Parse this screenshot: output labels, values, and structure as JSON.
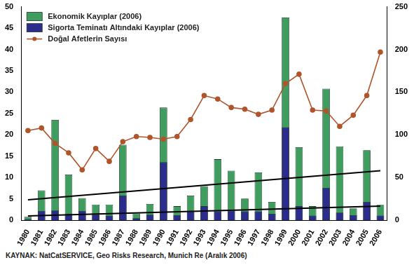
{
  "chart_data": {
    "type": "bar",
    "categories": [
      "1980",
      "1981",
      "1982",
      "1983",
      "1984",
      "1985",
      "1986",
      "1987",
      "1988",
      "1989",
      "1990",
      "1991",
      "1992",
      "1993",
      "1994",
      "1995",
      "1996",
      "1997",
      "1998",
      "1999",
      "2000",
      "2001",
      "2002",
      "2003",
      "2004",
      "2005",
      "2006"
    ],
    "series": [
      {
        "name": "Ekonomik Kayıplar (2006)",
        "type": "bar",
        "color": "#3f9d5f",
        "values": [
          0.8,
          7,
          23.5,
          10.7,
          5.2,
          3.7,
          3.7,
          17.7,
          1.6,
          3.8,
          26.4,
          3.3,
          5.8,
          8,
          14.3,
          11.6,
          5.1,
          11.2,
          4.3,
          47.5,
          17.1,
          3.3,
          30.8,
          17.3,
          2.8,
          16.4,
          3.6
        ]
      },
      {
        "name": "Sigorta Teminatı Altındaki Kayıplar (2006)",
        "type": "bar",
        "color": "#2c2c8e",
        "values": [
          0.3,
          2.2,
          2.3,
          1.5,
          2.2,
          1.3,
          1.1,
          5.8,
          0.5,
          1.3,
          13.6,
          1.2,
          2.1,
          3.3,
          2.1,
          2.2,
          2.1,
          2.1,
          1.5,
          21.8,
          3.3,
          1.1,
          7.6,
          1.8,
          1.2,
          4.3,
          1.1
        ]
      },
      {
        "name": "Doğal Afetlerin Sayısı",
        "type": "line",
        "axis": "y2",
        "color": "#b0552b",
        "marker": "circle",
        "values": [
          105,
          108,
          90,
          79,
          59,
          84,
          69,
          92,
          98,
          97,
          95,
          98,
          118,
          146,
          142,
          132,
          130,
          124,
          129,
          160,
          171,
          129,
          128,
          110,
          123,
          146,
          197
        ]
      },
      {
        "type": "line",
        "color": "#000000",
        "line_style": "solid",
        "values": [
          4.8,
          null,
          null,
          null,
          null,
          null,
          null,
          null,
          null,
          null,
          null,
          null,
          null,
          null,
          null,
          null,
          null,
          null,
          null,
          null,
          null,
          null,
          null,
          null,
          null,
          null,
          11.6
        ]
      },
      {
        "type": "line",
        "color": "#000000",
        "line_style": "solid",
        "values": [
          1.0,
          null,
          null,
          null,
          null,
          null,
          null,
          null,
          null,
          null,
          null,
          null,
          null,
          null,
          null,
          null,
          null,
          null,
          null,
          null,
          null,
          null,
          null,
          null,
          null,
          null,
          3.3
        ]
      }
    ],
    "ylim": [
      0,
      50
    ],
    "yticks": [
      0,
      5,
      10,
      15,
      20,
      25,
      30,
      35,
      40,
      45,
      50
    ],
    "y2lim": [
      0,
      250
    ],
    "y2ticks": [
      0,
      50,
      100,
      150,
      200,
      250
    ],
    "grid": false,
    "stacked": false,
    "legend": "top-left",
    "annotation": "KAYNAK: NatCatSERVICE, Geo Risks Research, Munich Re (Aralık 2006)"
  }
}
